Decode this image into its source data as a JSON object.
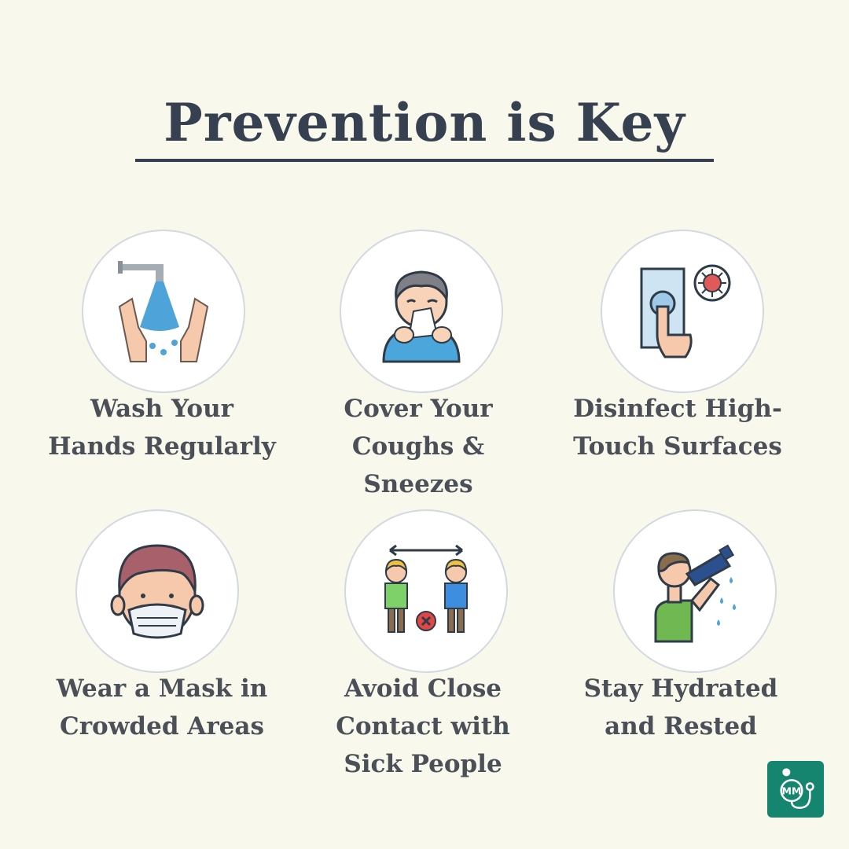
{
  "title": "Prevention is Key",
  "tips": [
    {
      "icon": "hand-washing-icon",
      "lines": [
        "Wash Your",
        "Hands Regularly"
      ]
    },
    {
      "icon": "sneezing-child-icon",
      "lines": [
        "Cover Your",
        "Coughs &",
        "Sneezes"
      ]
    },
    {
      "icon": "disinfect-surface-icon",
      "lines": [
        "Disinfect High-",
        "Touch Surfaces"
      ]
    },
    {
      "icon": "face-mask-icon",
      "lines": [
        "Wear a Mask in",
        "Crowded Areas"
      ]
    },
    {
      "icon": "social-distance-icon",
      "lines": [
        "Avoid Close",
        "Contact with",
        "Sick People"
      ]
    },
    {
      "icon": "drinking-water-icon",
      "lines": [
        "Stay Hydrated",
        "and Rested"
      ]
    }
  ],
  "logo": {
    "icon": "medical-logo-icon",
    "text": "MM",
    "color": "#16856f"
  },
  "colors": {
    "background": "#f8f9ec",
    "title": "#364051",
    "caption": "#4a4f58"
  }
}
